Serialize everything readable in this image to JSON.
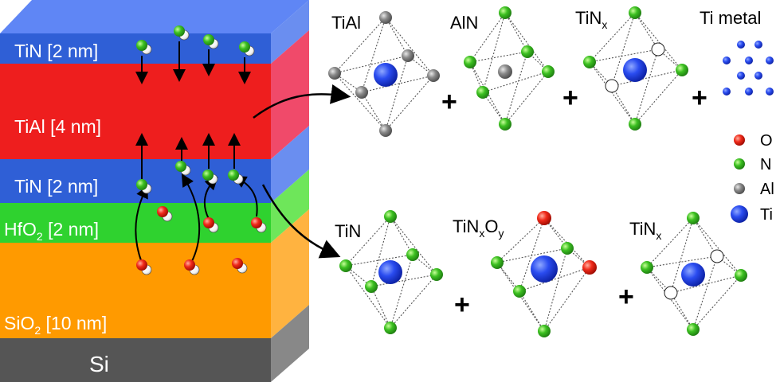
{
  "stack": {
    "layers": [
      {
        "name": "TiN [2 nm]",
        "color": "#2f5fd6"
      },
      {
        "name": "TiAl [4 nm]",
        "color": "#ee2020"
      },
      {
        "name": "TiN [2 nm]",
        "color": "#2f5fd6"
      },
      {
        "name_main": "HfO",
        "name_sub": "2",
        "name_rest": " [2 nm]",
        "color": "#33cc33"
      },
      {
        "name_main": "SiO",
        "name_sub": "2",
        "name_rest": " [10 nm]",
        "color": "#ff9a00"
      },
      {
        "name": "Si",
        "color": "#555555"
      }
    ]
  },
  "top_row": {
    "tial": "TiAl",
    "aln": "AlN",
    "tinx_main": "TiN",
    "tinx_sub": "x",
    "ti_metal": "Ti metal",
    "plus": "+"
  },
  "bottom_row": {
    "tin": "TiN",
    "tinxoy_main": "TiN",
    "tinxoy_sub1": "x",
    "tinxoy_o": "O",
    "tinxoy_sub2": "y",
    "tinx_main": "TiN",
    "tinx_sub": "x",
    "plus": "+"
  },
  "legend": [
    {
      "label": "O",
      "color": "#ee2020",
      "icon": "red-sphere"
    },
    {
      "label": "N",
      "color": "#33bb22",
      "icon": "green-sphere"
    },
    {
      "label": "Al",
      "color": "#888888",
      "icon": "gray-sphere"
    },
    {
      "label": "Ti",
      "color": "#2244ee",
      "icon": "blue-sphere"
    }
  ]
}
